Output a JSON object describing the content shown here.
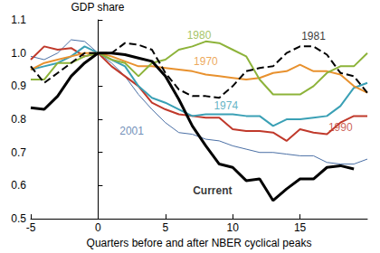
{
  "chart_data": {
    "type": "line",
    "ylabel": "GDP share",
    "xlabel": "Quarters before and after NBER cyclical peaks",
    "x": [
      -5,
      -4,
      -3,
      -2,
      -1,
      0,
      1,
      2,
      3,
      4,
      5,
      6,
      7,
      8,
      9,
      10,
      11,
      12,
      13,
      14,
      15,
      16,
      17,
      18,
      19,
      20
    ],
    "xlim": [
      -5,
      20
    ],
    "xticks": [
      -5,
      0,
      5,
      10,
      15
    ],
    "ylim": [
      0.5,
      1.1
    ],
    "yticks": [
      0.5,
      0.6,
      0.7,
      0.8,
      0.9,
      {
        "value": 1,
        "label": "1.0"
      },
      1.1
    ],
    "grid": false,
    "series": [
      {
        "name": "2001",
        "color": "#4a6fa5",
        "line_style": "solid",
        "values": [
          0.99,
          0.98,
          1.0,
          1.04,
          1.035,
          1.0,
          0.97,
          0.93,
          0.875,
          0.83,
          0.79,
          0.76,
          0.755,
          0.74,
          0.735,
          0.72,
          0.71,
          0.7,
          0.7,
          0.695,
          0.69,
          0.69,
          0.67,
          0.665,
          0.665,
          0.68
        ]
      },
      {
        "name": "1990",
        "color": "#c0392b",
        "line_style": "solid",
        "values": [
          0.98,
          1.02,
          1.01,
          1.015,
          0.99,
          1.0,
          0.96,
          0.93,
          0.9,
          0.85,
          0.83,
          0.815,
          0.81,
          0.805,
          0.805,
          0.77,
          0.765,
          0.765,
          0.76,
          0.735,
          0.77,
          0.76,
          0.755,
          0.79,
          0.81,
          0.81
        ]
      },
      {
        "name": "1974",
        "color": "#3aa0b5",
        "line_style": "solid",
        "values": [
          0.95,
          0.96,
          0.97,
          0.99,
          1.02,
          1.0,
          0.98,
          0.96,
          0.9,
          0.865,
          0.85,
          0.83,
          0.81,
          0.815,
          0.815,
          0.815,
          0.81,
          0.81,
          0.78,
          0.8,
          0.8,
          0.805,
          0.81,
          0.84,
          0.895,
          0.91
        ]
      },
      {
        "name": "1970",
        "color": "#e8912e",
        "line_style": "solid",
        "values": [
          0.95,
          0.97,
          0.98,
          0.99,
          1.0,
          1.0,
          0.99,
          0.975,
          0.96,
          0.96,
          0.955,
          0.95,
          0.945,
          0.935,
          0.93,
          0.925,
          0.92,
          0.925,
          0.94,
          0.945,
          0.965,
          0.945,
          0.945,
          0.935,
          0.9,
          0.88
        ]
      },
      {
        "name": "1980",
        "color": "#8db33a",
        "line_style": "solid",
        "values": [
          0.92,
          0.92,
          0.97,
          0.97,
          0.99,
          1.0,
          0.98,
          0.97,
          0.93,
          0.97,
          0.98,
          1.01,
          1.02,
          1.035,
          1.03,
          1.01,
          0.99,
          0.92,
          0.875,
          0.875,
          0.875,
          0.9,
          0.94,
          0.96,
          0.96,
          1.0
        ]
      },
      {
        "name": "1981",
        "color": "#000000",
        "line_style": "dashed",
        "values": [
          0.96,
          0.91,
          0.94,
          0.97,
          1.0,
          1.0,
          1.0,
          1.03,
          1.025,
          1.01,
          0.94,
          0.89,
          0.87,
          0.87,
          0.865,
          0.9,
          0.945,
          0.955,
          0.96,
          1.0,
          1.02,
          1.02,
          0.995,
          0.94,
          0.93,
          0.88
        ]
      },
      {
        "name": "Current",
        "color": "#000000",
        "line_style": "solid",
        "values": [
          0.835,
          0.83,
          0.87,
          0.93,
          0.97,
          1.0,
          1.0,
          0.995,
          0.985,
          0.975,
          0.93,
          0.86,
          0.78,
          0.72,
          0.665,
          0.655,
          0.615,
          0.62,
          0.555,
          0.59,
          0.62,
          0.62,
          0.655,
          0.66,
          0.65,
          null
        ]
      }
    ],
    "annotations": [
      {
        "text": "1981",
        "x": 16,
        "y": 1.05,
        "color": "#000000"
      },
      {
        "text": "1980",
        "x": 7.5,
        "y": 1.055,
        "color": "#8db33a"
      },
      {
        "text": "1970",
        "x": 8,
        "y": 0.975,
        "color": "#e8912e"
      },
      {
        "text": "1974",
        "x": 9.5,
        "y": 0.84,
        "color": "#3aa0b5"
      },
      {
        "text": "2001",
        "x": 2.5,
        "y": 0.765,
        "color": "#4a6fa5"
      },
      {
        "text": "1990",
        "x": 18,
        "y": 0.775,
        "color": "#c0392b"
      },
      {
        "text": "Current",
        "x": 8.5,
        "y": 0.585,
        "color": "#000000"
      }
    ]
  }
}
